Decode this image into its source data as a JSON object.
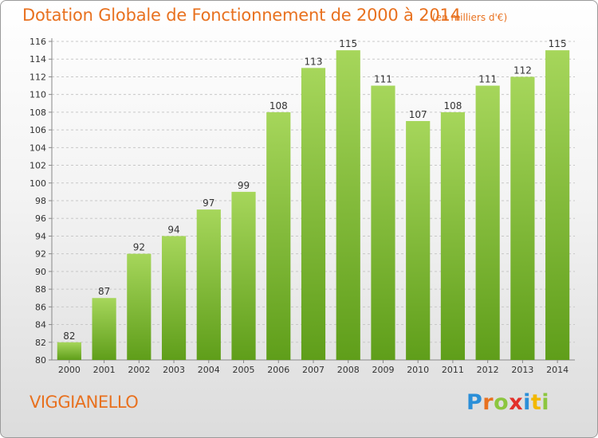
{
  "header": {
    "title": "Dotation Globale de Fonctionnement de 2000 à 2014",
    "unit_note": "(en milliers d'€)"
  },
  "footer": {
    "commune": "VIGGIANELLO",
    "logo_text": "Proxiti",
    "logo_letters": [
      {
        "char": "P",
        "color": "#2b8fd8"
      },
      {
        "char": "r",
        "color": "#e8711f"
      },
      {
        "char": "o",
        "color": "#8cc63f"
      },
      {
        "char": "x",
        "color": "#e2302a"
      },
      {
        "char": "i",
        "color": "#2b8fd8"
      },
      {
        "char": "t",
        "color": "#f2b800"
      },
      {
        "char": "i",
        "color": "#8cc63f"
      }
    ]
  },
  "colors": {
    "accent": "#e8711f",
    "bar_light": "#a6d65b",
    "bar_dark": "#5f9e1a",
    "grid": "#c8c8c8",
    "axis_text": "#333333"
  },
  "chart_data": {
    "type": "bar",
    "title": "Dotation Globale de Fonctionnement de 2000 à 2014",
    "subtitle": "(en milliers d'€)",
    "categories": [
      "2000",
      "2001",
      "2002",
      "2003",
      "2004",
      "2005",
      "2006",
      "2007",
      "2008",
      "2009",
      "2010",
      "2011",
      "2012",
      "2013",
      "2014"
    ],
    "values": [
      82,
      87,
      92,
      94,
      97,
      99,
      108,
      113,
      115,
      111,
      107,
      108,
      111,
      112,
      115
    ],
    "ylim": [
      80,
      116
    ],
    "yticks": [
      80,
      82,
      84,
      86,
      88,
      90,
      92,
      94,
      96,
      98,
      100,
      102,
      104,
      106,
      108,
      110,
      112,
      114,
      116
    ],
    "grid": true,
    "data_labels": true
  }
}
